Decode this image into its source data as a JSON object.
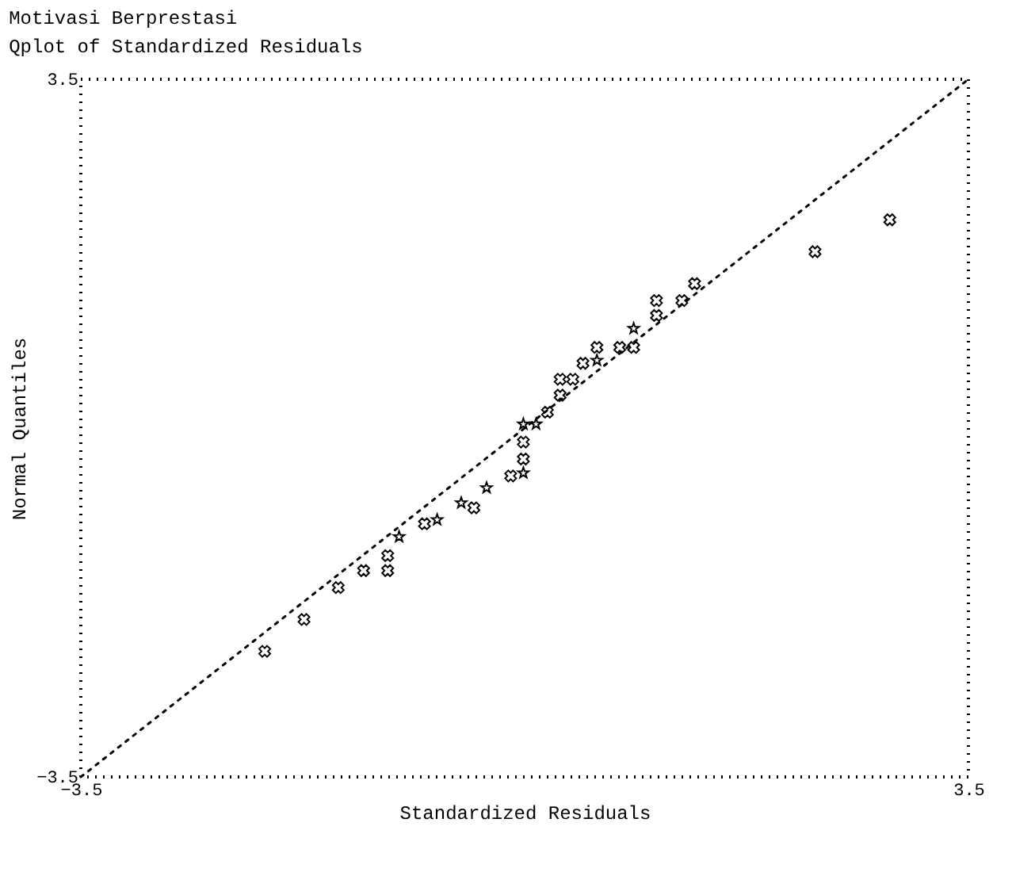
{
  "chart_data": {
    "type": "scatter",
    "title": "Motivasi Berprestasi",
    "subtitle": "Qplot of Standardized Residuals",
    "xlabel": "Standardized Residuals",
    "ylabel": "Normal Quantiles",
    "xlim": [
      -3.5,
      3.5
    ],
    "ylim": [
      -3.5,
      3.5
    ],
    "xticks": [
      -3.5,
      3.5
    ],
    "yticks": [
      -3.5,
      3.5
    ],
    "grid": false,
    "series": [
      {
        "type": "line",
        "color": "#000000",
        "line_style": "dotted",
        "marker": "none",
        "x": [
          -3.5,
          3.5
        ],
        "values": [
          -3.5,
          3.5
        ]
      },
      {
        "color": "#000000",
        "marker": "cross",
        "x": [
          -2.05,
          -1.74,
          -1.47,
          -1.27,
          -1.08,
          -1.08,
          -0.79,
          -0.4,
          -0.11,
          -0.01,
          -0.01,
          0.18,
          0.28,
          0.28,
          0.38,
          0.46,
          0.57,
          0.75,
          0.86,
          1.04,
          1.04,
          1.24,
          1.34,
          2.29,
          2.88
        ],
        "values": [
          -2.24,
          -1.92,
          -1.6,
          -1.43,
          -1.43,
          -1.28,
          -0.96,
          -0.8,
          -0.48,
          -0.31,
          -0.14,
          0.16,
          0.33,
          0.49,
          0.49,
          0.65,
          0.81,
          0.81,
          0.81,
          1.13,
          1.28,
          1.28,
          1.45,
          1.77,
          2.09
        ]
      },
      {
        "color": "#000000",
        "marker": "star",
        "x": [
          -0.99,
          -0.69,
          -0.5,
          -0.3,
          -0.01,
          -0.01,
          0.09,
          0.57,
          0.86
        ],
        "values": [
          -1.09,
          -0.92,
          -0.75,
          -0.6,
          -0.45,
          0.04,
          0.04,
          0.68,
          1.0
        ]
      }
    ]
  }
}
